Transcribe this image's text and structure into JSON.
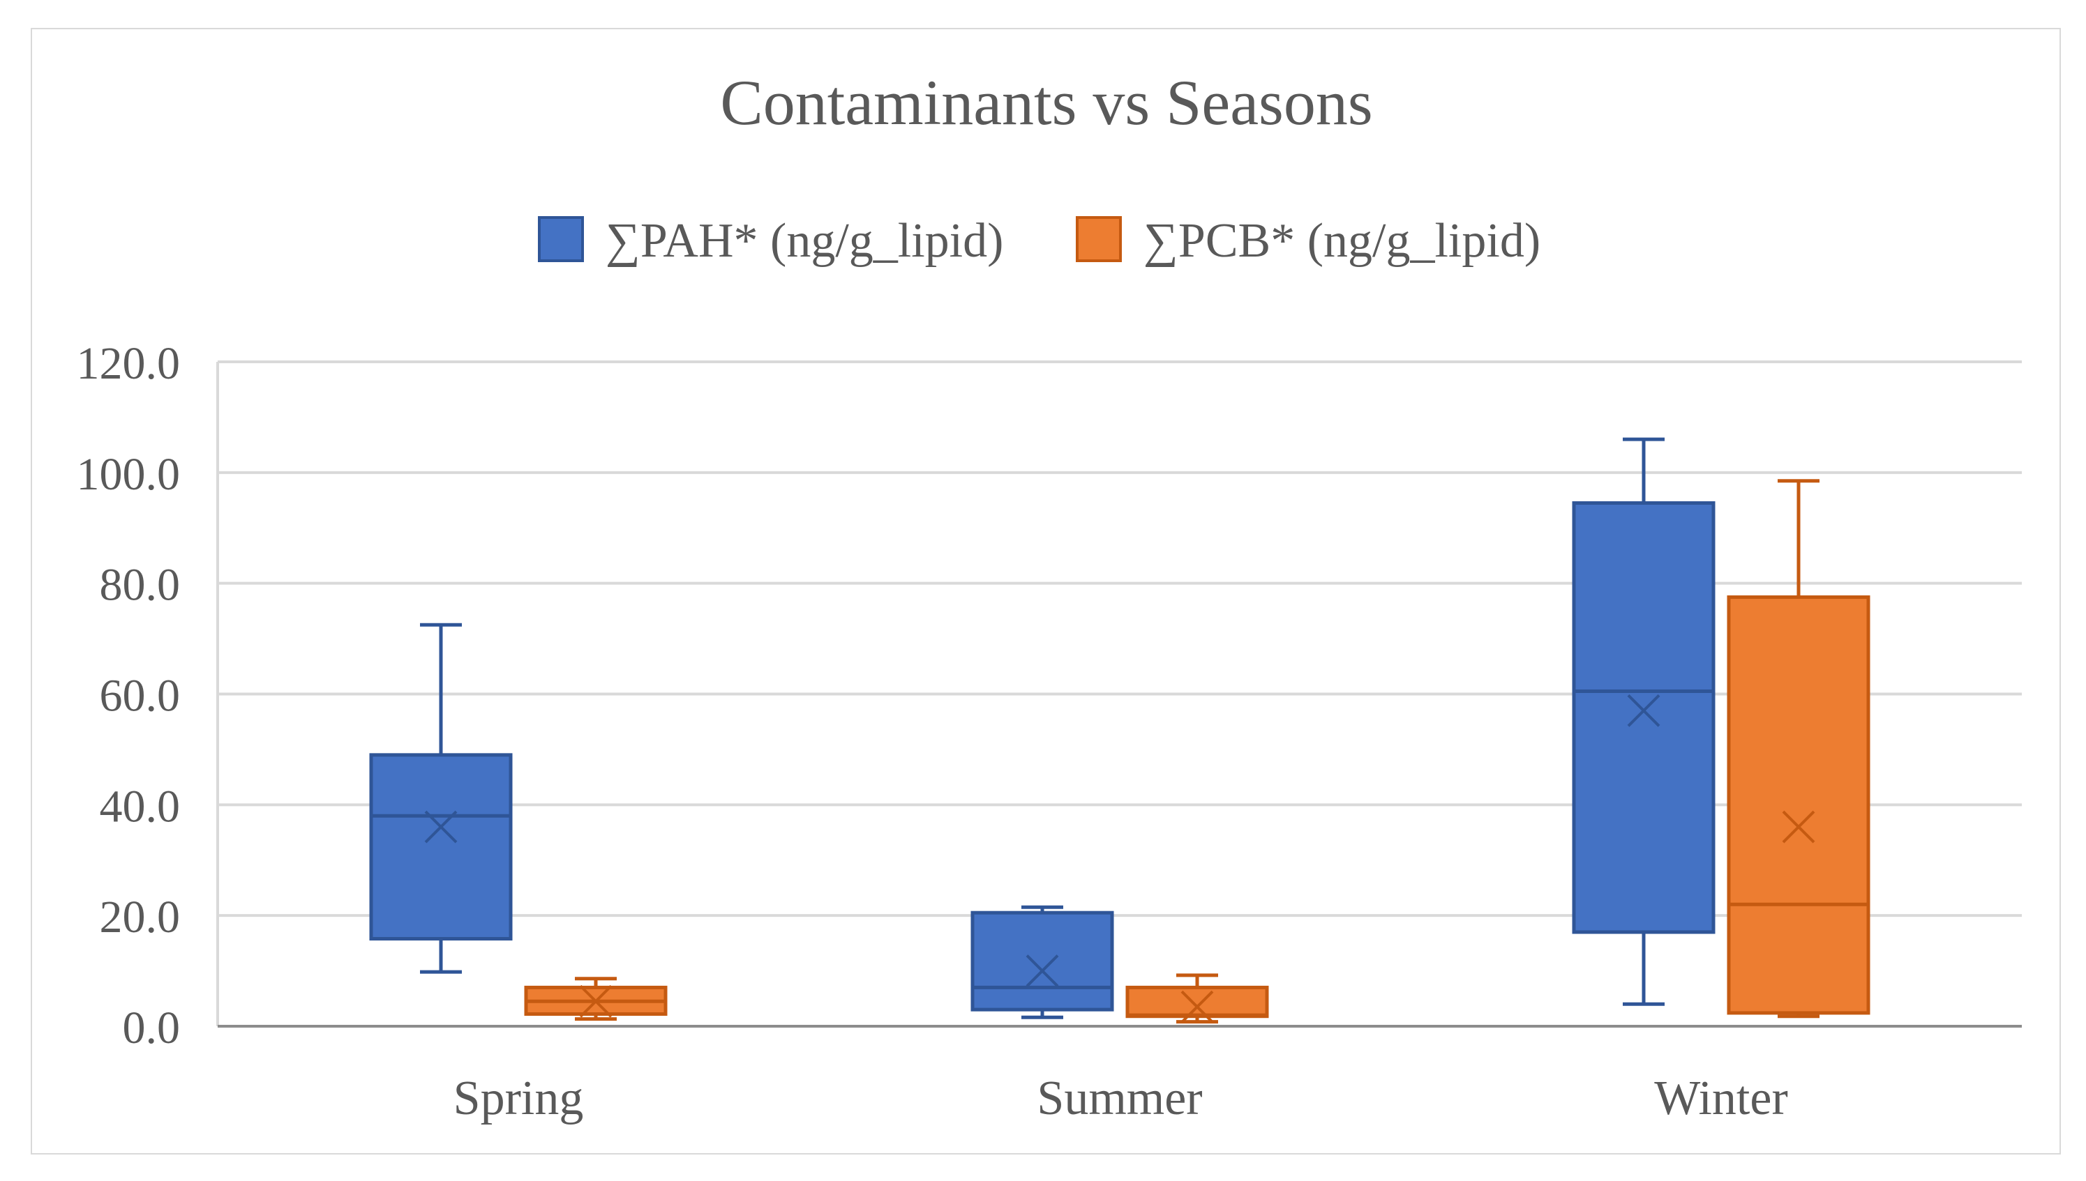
{
  "chart_data": {
    "type": "box",
    "title": "Contaminants vs Seasons",
    "xlabel": "",
    "ylabel": "",
    "ylim": [
      0,
      120
    ],
    "ytick_step": 20,
    "ytick_labels": [
      "0.0",
      "20.0",
      "40.0",
      "60.0",
      "80.0",
      "100.0",
      "120.0"
    ],
    "grid": true,
    "legend_position": "top-center",
    "categories": [
      "Spring",
      "Summer",
      "Winter"
    ],
    "series": [
      {
        "name": "∑PAH* (ng/g_lipid)",
        "color": "#4472C4",
        "boxes": [
          {
            "min": 9.8,
            "q1": 15.8,
            "median": 38.0,
            "q3": 49.0,
            "max": 72.5,
            "mean": 36.0
          },
          {
            "min": 1.6,
            "q1": 3.0,
            "median": 7.0,
            "q3": 20.5,
            "max": 21.5,
            "mean": 10.0
          },
          {
            "min": 4.0,
            "q1": 17.0,
            "median": 60.5,
            "q3": 94.5,
            "max": 106.0,
            "mean": 57.0
          }
        ]
      },
      {
        "name": "∑PCB* (ng/g_lipid)",
        "color": "#ED7D31",
        "boxes": [
          {
            "min": 1.3,
            "q1": 2.2,
            "median": 4.5,
            "q3": 7.0,
            "max": 8.6,
            "mean": 4.5
          },
          {
            "min": 0.8,
            "q1": 1.8,
            "median": 2.0,
            "q3": 7.0,
            "max": 9.2,
            "mean": 3.5
          },
          {
            "min": 1.8,
            "q1": 2.4,
            "median": 22.0,
            "q3": 77.5,
            "max": 98.5,
            "mean": 36.0
          }
        ]
      }
    ]
  }
}
